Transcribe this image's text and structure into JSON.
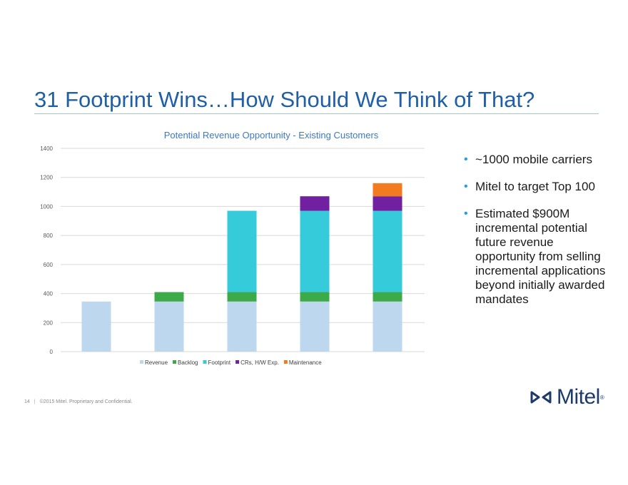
{
  "slide": {
    "title": "31 Footprint Wins…How Should We Think of That?",
    "page_number": "14",
    "footer_sep": "|",
    "footer_text": "©2015 Mitel. Proprietary and Confidential.",
    "logo_text": "Mitel",
    "logo_reg": "®"
  },
  "bullets": [
    {
      "text": "~1000 mobile carriers"
    },
    {
      "text": "Mitel to target Top 100"
    },
    {
      "text": "Estimated $900M incremental potential future revenue opportunity from selling incremental applications beyond initially awarded mandates"
    }
  ],
  "colors": {
    "title": "#1f5fa8",
    "bullet": "#1ba1e2",
    "chart_title": "#3c78c8",
    "revenue": "#bdd7ee",
    "backlog": "#3daa4a",
    "footprint": "#36cbdb",
    "crs": "#7020a0",
    "maintenance": "#f47a1f",
    "logo": "#1d3a6b"
  },
  "chart_data": {
    "type": "bar",
    "stacked": true,
    "title": "Potential Revenue Opportunity - Existing Customers",
    "categories": [
      "",
      "",
      "",
      "",
      ""
    ],
    "ylim": [
      0,
      1400
    ],
    "yticks": [
      0,
      200,
      400,
      600,
      800,
      1000,
      1200,
      1400
    ],
    "grid": true,
    "legend_position": "bottom",
    "series": [
      {
        "name": "Revenue",
        "color": "#bdd7ee",
        "values": [
          345,
          345,
          345,
          345,
          345
        ]
      },
      {
        "name": "Backlog",
        "color": "#3daa4a",
        "values": [
          0,
          65,
          65,
          65,
          65
        ]
      },
      {
        "name": "Footprint",
        "color": "#36cbdb",
        "values": [
          0,
          0,
          560,
          560,
          560
        ]
      },
      {
        "name": "CRs, H/W Exp.",
        "color": "#7020a0",
        "values": [
          0,
          0,
          0,
          100,
          100
        ]
      },
      {
        "name": "Maintenance",
        "color": "#f47a1f",
        "values": [
          0,
          0,
          0,
          0,
          90
        ]
      }
    ]
  }
}
